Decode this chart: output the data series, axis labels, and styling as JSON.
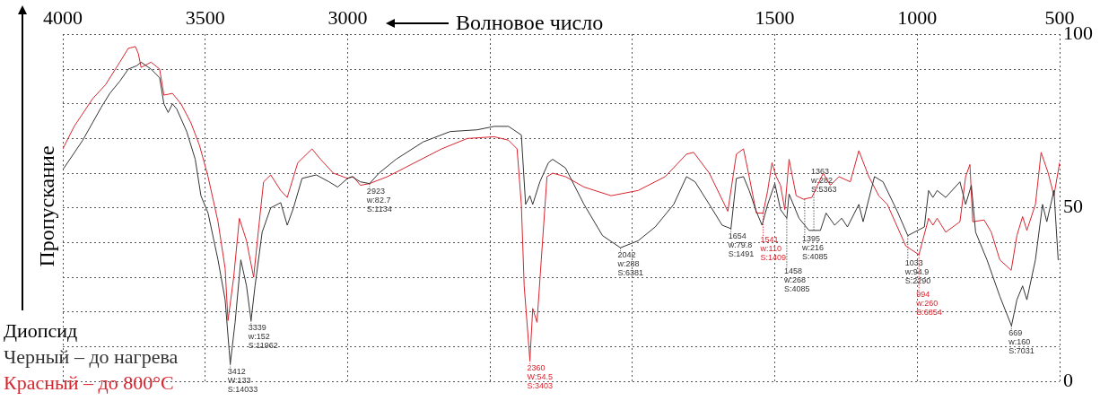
{
  "chart_data": {
    "type": "line",
    "xlabel": "Волновое число",
    "ylabel": "Пропускание",
    "legend_title": "Диопсид",
    "legend": "bottom left",
    "grid": true,
    "marker": "none",
    "line_style": "solid",
    "xlim": [
      4000,
      500
    ],
    "xticks": [
      4000,
      3500,
      3000,
      {
        "value": 2500,
        "label": null
      },
      {
        "value": 2000,
        "label": null
      },
      1500,
      1000,
      500
    ],
    "ylim": [
      0,
      100
    ],
    "yticks": [
      0,
      {
        "value": 10,
        "label": null
      },
      {
        "value": 20,
        "label": null
      },
      {
        "value": 30,
        "label": null
      },
      {
        "value": 40,
        "label": null
      },
      50,
      {
        "value": 60,
        "label": null
      },
      {
        "value": 70,
        "label": null
      },
      {
        "value": 80,
        "label": null
      },
      {
        "value": 90,
        "label": null
      },
      100
    ],
    "series": [
      {
        "name": "Черный – до нагрева",
        "color": "#333333",
        "x": [
          4000,
          3930,
          3865,
          3835,
          3800,
          3770,
          3740,
          3725,
          3690,
          3660,
          3645,
          3630,
          3615,
          3600,
          3565,
          3535,
          3515,
          3490,
          3455,
          3430,
          3416,
          3412,
          3395,
          3375,
          3355,
          3339,
          3325,
          3300,
          3270,
          3235,
          3212,
          3190,
          3160,
          3110,
          3065,
          3035,
          3000,
          2985,
          2955,
          2923,
          2890,
          2830,
          2735,
          2640,
          2545,
          2485,
          2435,
          2390,
          2375,
          2360,
          2350,
          2325,
          2295,
          2280,
          2235,
          2170,
          2105,
          2042,
          1980,
          1920,
          1855,
          1810,
          1780,
          1730,
          1685,
          1654,
          1635,
          1610,
          1590,
          1565,
          1545,
          1525,
          1500,
          1480,
          1458,
          1450,
          1415,
          1380,
          1340,
          1320,
          1290,
          1265,
          1245,
          1205,
          1190,
          1150,
          1120,
          1070,
          1033,
          975,
          960,
          945,
          930,
          900,
          850,
          830,
          810,
          795,
          755,
          710,
          669,
          650,
          630,
          615,
          585,
          560,
          545,
          520,
          505
        ],
        "values": [
          61,
          69.5,
          79,
          83,
          86.5,
          90,
          91,
          92,
          90,
          87.5,
          80,
          77.5,
          80,
          78.5,
          72,
          64,
          53.5,
          48.5,
          35,
          23.5,
          9,
          5,
          17,
          35,
          27.5,
          17.5,
          27.5,
          43,
          50,
          51.5,
          45,
          50,
          58.5,
          59.5,
          57.5,
          56,
          58.5,
          59,
          57.5,
          57,
          60,
          64,
          69,
          72,
          72.5,
          73.5,
          73.5,
          71,
          51,
          53.5,
          51,
          57.5,
          63,
          64,
          61.5,
          51,
          42,
          38.5,
          40.5,
          44.5,
          51,
          59,
          57.5,
          51,
          45,
          44,
          58.5,
          59,
          55,
          49,
          45,
          51,
          57,
          49.5,
          47,
          54,
          47,
          43.5,
          43.5,
          48.5,
          45,
          47,
          44.5,
          51,
          46,
          59,
          57.5,
          49,
          42,
          44.5,
          55,
          53,
          55,
          53,
          57.5,
          51,
          56.5,
          43,
          35,
          24.5,
          16,
          23.5,
          27.5,
          23.5,
          35,
          51,
          46,
          55,
          35
        ]
      },
      {
        "name": "Красный – до 800°C",
        "color": "#d9252f",
        "x": [
          4000,
          3960,
          3895,
          3850,
          3800,
          3770,
          3745,
          3735,
          3725,
          3690,
          3660,
          3645,
          3615,
          3585,
          3550,
          3520,
          3490,
          3455,
          3430,
          3420,
          3400,
          3380,
          3355,
          3330,
          3310,
          3295,
          3270,
          3235,
          3212,
          3175,
          3125,
          3095,
          3050,
          3000,
          2980,
          2955,
          2923,
          2860,
          2765,
          2670,
          2580,
          2485,
          2435,
          2405,
          2390,
          2380,
          2360,
          2350,
          2335,
          2320,
          2300,
          2280,
          2235,
          2170,
          2075,
          1980,
          1885,
          1810,
          1785,
          1730,
          1665,
          1635,
          1610,
          1590,
          1565,
          1541,
          1525,
          1510,
          1495,
          1480,
          1465,
          1450,
          1425,
          1400,
          1370,
          1330,
          1305,
          1275,
          1235,
          1205,
          1170,
          1135,
          1105,
          1040,
          994,
          960,
          945,
          930,
          900,
          850,
          830,
          815,
          805,
          765,
          740,
          710,
          670,
          650,
          630,
          615,
          585,
          565,
          540,
          520,
          500
        ],
        "values": [
          67,
          73.5,
          81.5,
          85.5,
          92,
          96,
          96.5,
          94.5,
          90.5,
          92,
          90,
          82.5,
          83,
          80,
          74.5,
          68,
          59,
          46,
          32.5,
          17.5,
          30,
          47,
          40.5,
          30,
          46,
          57.5,
          59.5,
          55,
          53,
          63,
          67,
          64,
          60,
          58.5,
          59,
          56.5,
          57,
          59,
          63,
          67,
          70,
          70.5,
          69.5,
          67,
          51,
          27.5,
          6,
          21,
          17,
          35,
          59,
          60,
          59,
          56,
          53.5,
          55,
          59,
          65.5,
          66,
          60,
          49,
          65.5,
          67,
          59,
          48.5,
          48.5,
          55,
          63,
          59,
          56.5,
          49.5,
          64,
          53.5,
          52.5,
          53,
          60,
          56.5,
          59,
          57.5,
          66.5,
          59,
          53.5,
          51,
          39,
          36.5,
          47,
          45,
          47,
          43,
          46,
          59,
          62.5,
          46,
          46.5,
          43,
          35,
          32,
          42,
          47.5,
          43.5,
          51,
          66,
          60,
          53.5,
          63
        ]
      }
    ],
    "annotations": [
      {
        "text": "3412\nW:133\nS:14033",
        "x": 3412,
        "y": 5
      },
      {
        "text": "3339\nw:152\nS:11962",
        "x": 3339,
        "y": 17.5
      },
      {
        "text": "2923\nw:82.7\nS:1134",
        "x": 2923,
        "y": 57
      },
      {
        "text": "2360\nW:54.5\nS:3403",
        "x": 2360,
        "y": 6
      },
      {
        "text": "2042\nw:288\nS:6381",
        "x": 2042,
        "y": 38.5
      },
      {
        "text": "1654\nw:79.8\nS:1491",
        "x": 1654,
        "y": 44
      },
      {
        "text": "1541\nw:110\nS:1409",
        "x": 1541,
        "y": 48.5
      },
      {
        "text": "1458\nw:268\nS:4085",
        "x": 1458,
        "y": 47
      },
      {
        "text": "1395\nw:216\nS:4085",
        "x": 1395,
        "y": 52.5
      },
      {
        "text": "1363\nw:282\nS:5363",
        "x": 1363,
        "y": 43.5
      },
      {
        "text": "1033\nw:94.9\nS:2290",
        "x": 1033,
        "y": 42
      },
      {
        "text": "994\nw:260\nS:6854",
        "x": 994,
        "y": 36.5
      },
      {
        "text": "669\nw:160\nS:7031",
        "x": 669,
        "y": 16
      }
    ]
  }
}
